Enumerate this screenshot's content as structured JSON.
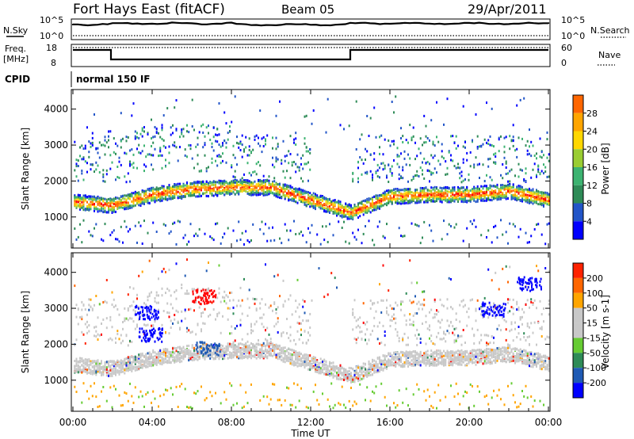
{
  "header": {
    "station": "Fort Hays East (fitACF)",
    "beam": "Beam 05",
    "date": "29/Apr/2011"
  },
  "top_panels": {
    "nsky_label": "N.Sky",
    "nsky_ticks": [
      "10^5",
      "10^0"
    ],
    "nsearch_label": "N.Search",
    "nsearch_ticks": [
      "10^5",
      "10^0"
    ],
    "freq_label_line1": "Freq.",
    "freq_label_line2": "[MHz]",
    "freq_ticks": [
      "18",
      "8"
    ],
    "nave_label": "Nave",
    "nave_ticks": [
      "60",
      "0"
    ],
    "cpid_label": "CPID",
    "cpid_value": "normal 150 IF"
  },
  "colors": {
    "power_scale": [
      "#0000ff",
      "#2255c8",
      "#2e8b57",
      "#3cb371",
      "#9acd32",
      "#ffd700",
      "#ffa500",
      "#ff6600",
      "#ff0000"
    ],
    "velocity_scale": [
      "#0000ff",
      "#1f5ab4",
      "#2e8b57",
      "#66cc33",
      "#c8c8c8",
      "#c8c8c8",
      "#ffa500",
      "#ff6600",
      "#ff2200",
      "#ff0000"
    ]
  },
  "chart_data": [
    {
      "type": "heatmap",
      "name": "power",
      "ylabel": "Slant Range [km]",
      "y_ticks": [
        "1000",
        "2000",
        "3000",
        "4000"
      ],
      "ylim": [
        180,
        4500
      ],
      "xlim": [
        "00:00",
        "24:00"
      ],
      "colorbar_label": "Power [dB]",
      "colorbar_ticks": [
        "28",
        "24",
        "20",
        "16",
        "12",
        "8",
        "4"
      ],
      "bands": [
        {
          "x": [
            0,
            2,
            4,
            6,
            8,
            10,
            12,
            14.05,
            16,
            18,
            20,
            22,
            24
          ],
          "y": [
            1450,
            1350,
            1650,
            1800,
            1850,
            1850,
            1500,
            1150,
            1600,
            1650,
            1650,
            1750,
            1500
          ],
          "value": 24
        }
      ]
    },
    {
      "type": "heatmap",
      "name": "velocity",
      "ylabel": "Slant Range [km]",
      "y_ticks": [
        "1000",
        "2000",
        "3000",
        "4000"
      ],
      "ylim": [
        180,
        4500
      ],
      "xlabel": "Time UT",
      "x_ticks": [
        "00:00",
        "04:00",
        "08:00",
        "12:00",
        "16:00",
        "20:00",
        "00:00"
      ],
      "colorbar_label": "Velocity [m s-1]",
      "colorbar_ticks": [
        "200",
        "100",
        "50",
        "15",
        "-15",
        "-50",
        "-100",
        "-200"
      ]
    }
  ]
}
